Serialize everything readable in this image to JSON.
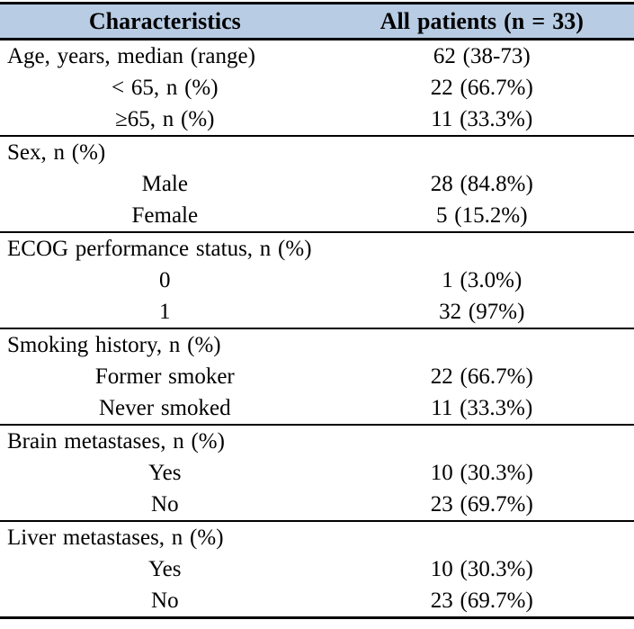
{
  "table": {
    "header_bg": "#b8cce4",
    "border_color": "#000000",
    "columns": [
      {
        "label": "Characteristics"
      },
      {
        "label": "All patients (n = 33)"
      }
    ],
    "rows": [
      {
        "label": "Age, years, median (range)",
        "value": "62 (38-73)",
        "align": "left",
        "sep": false
      },
      {
        "label": "< 65, n (%)",
        "value": "22 (66.7%)",
        "align": "center",
        "sep": false
      },
      {
        "label": "≥65, n (%)",
        "value": "11 (33.3%)",
        "align": "center",
        "sep": true
      },
      {
        "label": "Sex, n (%)",
        "value": "",
        "align": "left",
        "sep": false
      },
      {
        "label": "Male",
        "value": "28 (84.8%)",
        "align": "center",
        "sep": false
      },
      {
        "label": "Female",
        "value": "5 (15.2%)",
        "align": "center",
        "sep": true
      },
      {
        "label": "ECOG performance status, n (%)",
        "value": "",
        "align": "left",
        "sep": false
      },
      {
        "label": "0",
        "value": "1 (3.0%)",
        "align": "center",
        "sep": false
      },
      {
        "label": "1",
        "value": "32 (97%)",
        "align": "center",
        "sep": true
      },
      {
        "label": "Smoking history, n (%)",
        "value": "",
        "align": "left",
        "sep": false
      },
      {
        "label": "Former smoker",
        "value": "22 (66.7%)",
        "align": "center",
        "sep": false
      },
      {
        "label": "Never smoked",
        "value": "11 (33.3%)",
        "align": "center",
        "sep": true
      },
      {
        "label": "Brain metastases, n (%)",
        "value": "",
        "align": "left",
        "sep": false
      },
      {
        "label": "Yes",
        "value": "10 (30.3%)",
        "align": "center",
        "sep": false
      },
      {
        "label": "No",
        "value": "23 (69.7%)",
        "align": "center",
        "sep": true
      },
      {
        "label": "Liver metastases, n (%)",
        "value": "",
        "align": "left",
        "sep": false
      },
      {
        "label": "Yes",
        "value": "10 (30.3%)",
        "align": "center",
        "sep": false
      },
      {
        "label": "No",
        "value": "23 (69.7%)",
        "align": "center",
        "sep": true
      }
    ]
  }
}
